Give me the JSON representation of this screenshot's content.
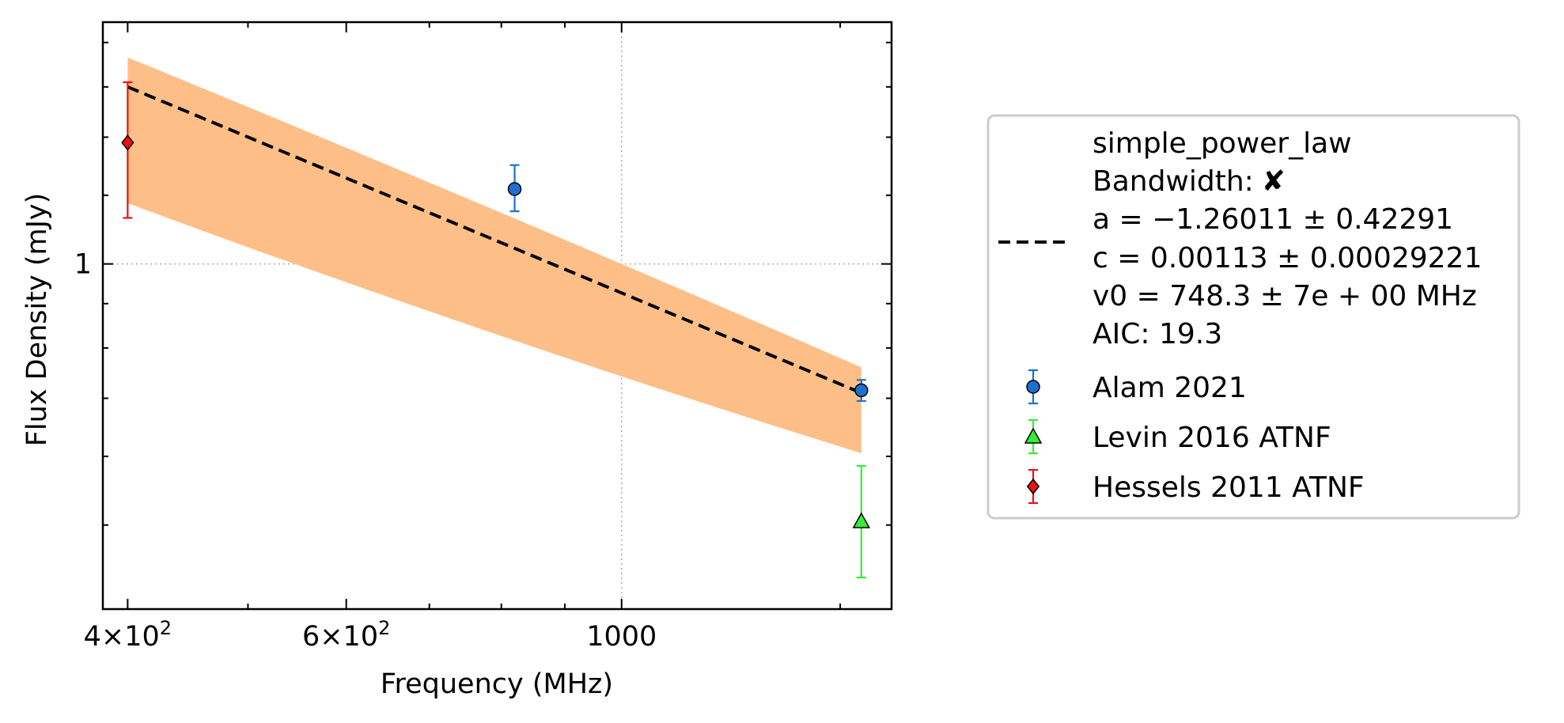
{
  "chart_data": {
    "type": "scatter",
    "xlabel": "Frequency (MHz)",
    "ylabel": "Flux Density (mJy)",
    "xscale": "log",
    "yscale": "log",
    "xlim": [
      382,
      1650
    ],
    "ylim": [
      0.4,
      1.9
    ],
    "grid": "dotted at major ticks",
    "legend_placement": "right, outside plot",
    "x_ticks": [
      {
        "value": 400,
        "base": "4",
        "exp": "2"
      },
      {
        "value": 600,
        "base": "6",
        "exp": "2"
      },
      {
        "value": 1000,
        "label": "1000"
      }
    ],
    "y_ticks": [
      {
        "value": 1,
        "label": "1"
      }
    ],
    "fit": {
      "model": "simple_power_law",
      "bandwidth_line": "Bandwidth:",
      "bandwidth_mark": "✘",
      "param_lines": [
        "a = −1.26011 ± 0.42291",
        "c = 0.00113 ± 0.00029221",
        "v0 = 748.3 ± 7e + 00 MHz",
        "AIC: 19.3"
      ],
      "x": [
        400,
        1560
      ],
      "y": [
        1.6,
        0.71
      ],
      "band_upper": [
        1.73,
        0.76
      ],
      "band_lower": [
        1.175,
        0.605
      ],
      "line_color": "#000000",
      "band_color": "#fdbf87"
    },
    "series": [
      {
        "name": "Alam 2021",
        "marker": "circle",
        "color": "#1f6fd1",
        "points": [
          {
            "x": 820,
            "y": 1.22,
            "err_low": 0.07,
            "err_high": 0.08
          },
          {
            "x": 1560,
            "y": 0.715,
            "err_low": 0.02,
            "err_high": 0.02
          }
        ]
      },
      {
        "name": "Levin 2016 ATNF",
        "marker": "triangle",
        "color": "#33ee33",
        "points": [
          {
            "x": 1560,
            "y": 0.505,
            "err_low": 0.07,
            "err_high": 0.08
          }
        ]
      },
      {
        "name": "Hessels 2011 ATNF",
        "marker": "diamond",
        "color": "#ee1111",
        "points": [
          {
            "x": 400,
            "y": 1.38,
            "err_low": 0.25,
            "err_high": 0.24
          }
        ]
      }
    ]
  }
}
